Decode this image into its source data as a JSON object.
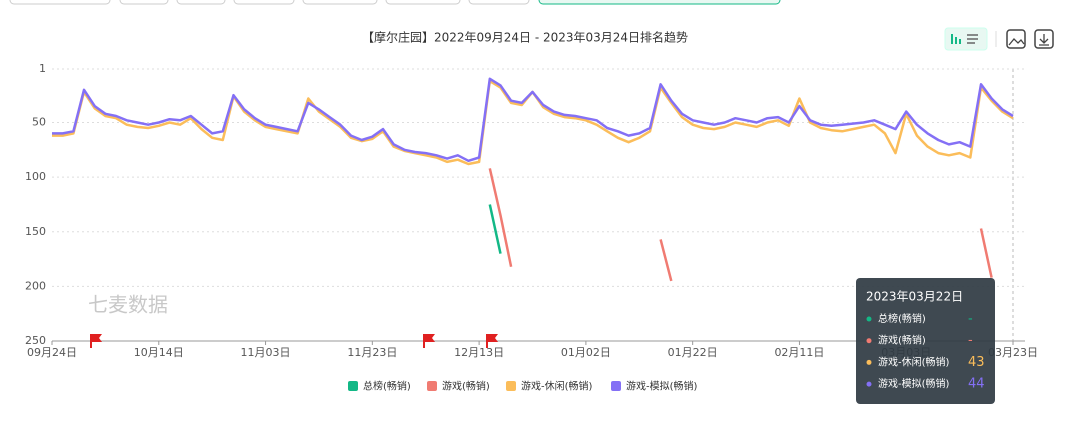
{
  "chart_data": {
    "type": "line",
    "title": "【摩尔庄园】2022年09月24日 - 2023年03月24日排名趋势",
    "watermark": "七麦数据",
    "categories": [
      "09月24日",
      null,
      null,
      null,
      null,
      null,
      null,
      null,
      null,
      null,
      "10月14日",
      null,
      null,
      null,
      null,
      null,
      null,
      null,
      null,
      null,
      "11月03日",
      null,
      null,
      null,
      null,
      null,
      null,
      null,
      null,
      null,
      "11月23日",
      null,
      null,
      null,
      null,
      null,
      null,
      null,
      null,
      null,
      "12月13日",
      null,
      null,
      null,
      null,
      null,
      null,
      null,
      null,
      null,
      "01月02日",
      null,
      null,
      null,
      null,
      null,
      null,
      null,
      null,
      null,
      "01月22日",
      null,
      null,
      null,
      null,
      null,
      null,
      null,
      null,
      null,
      "02月11日",
      null,
      null,
      null,
      null,
      null,
      null,
      null,
      null,
      null,
      "03月03日",
      null,
      null,
      null,
      null,
      null,
      null,
      null,
      null,
      null,
      "03月23日"
    ],
    "ylim": [
      1,
      250
    ],
    "y_inverted": true,
    "yticks": [
      1,
      50,
      100,
      150,
      200,
      250
    ],
    "grid": true,
    "series": [
      {
        "name": "总榜(畅销)",
        "color": "#13b886",
        "values": [
          null,
          null,
          null,
          null,
          null,
          null,
          null,
          null,
          null,
          null,
          null,
          null,
          null,
          null,
          null,
          null,
          null,
          null,
          null,
          null,
          null,
          null,
          null,
          null,
          null,
          null,
          null,
          null,
          null,
          null,
          null,
          null,
          null,
          null,
          null,
          null,
          null,
          null,
          null,
          null,
          null,
          125,
          170,
          null,
          null,
          null,
          null,
          null,
          null,
          null,
          null,
          null,
          null,
          null,
          null,
          null,
          null,
          null,
          null,
          null,
          null,
          null,
          null,
          null,
          null,
          null,
          null,
          null,
          null,
          null,
          null,
          null,
          null,
          null,
          null,
          null,
          null,
          null,
          null,
          null,
          null,
          null,
          null,
          null,
          null,
          null,
          null,
          null,
          null,
          null,
          null
        ]
      },
      {
        "name": "游戏(畅销)",
        "color": "#f07b72",
        "values": [
          null,
          null,
          null,
          null,
          null,
          null,
          null,
          null,
          null,
          null,
          null,
          null,
          null,
          null,
          null,
          null,
          null,
          null,
          null,
          null,
          null,
          null,
          null,
          null,
          null,
          null,
          null,
          null,
          null,
          null,
          null,
          null,
          null,
          null,
          null,
          null,
          null,
          null,
          null,
          null,
          null,
          92,
          135,
          182,
          null,
          null,
          null,
          null,
          null,
          null,
          null,
          null,
          null,
          null,
          null,
          null,
          null,
          157,
          195,
          null,
          null,
          null,
          null,
          null,
          null,
          null,
          null,
          null,
          null,
          null,
          null,
          null,
          null,
          null,
          null,
          null,
          null,
          null,
          null,
          null,
          null,
          null,
          null,
          null,
          null,
          null,
          null,
          147,
          192,
          null,
          null
        ]
      },
      {
        "name": "游戏-休闲(畅销)",
        "color": "#fbbd5a",
        "values": [
          62,
          62,
          60,
          22,
          37,
          44,
          46,
          52,
          54,
          55,
          53,
          50,
          52,
          46,
          56,
          64,
          66,
          26,
          40,
          48,
          54,
          56,
          58,
          60,
          28,
          40,
          47,
          54,
          64,
          67,
          65,
          58,
          72,
          76,
          78,
          80,
          82,
          86,
          84,
          88,
          86,
          12,
          18,
          32,
          34,
          22,
          36,
          42,
          45,
          46,
          48,
          52,
          58,
          64,
          68,
          64,
          58,
          18,
          32,
          45,
          52,
          55,
          56,
          54,
          50,
          52,
          54,
          50,
          48,
          53,
          28,
          50,
          55,
          57,
          58,
          56,
          54,
          52,
          60,
          78,
          42,
          62,
          72,
          78,
          80,
          78,
          82,
          18,
          30,
          40,
          46
        ]
      },
      {
        "name": "游戏-模拟(畅销)",
        "color": "#8470f5",
        "values": [
          60,
          60,
          58,
          20,
          35,
          42,
          44,
          48,
          50,
          52,
          50,
          47,
          48,
          44,
          52,
          60,
          58,
          25,
          38,
          46,
          52,
          54,
          56,
          58,
          32,
          38,
          45,
          52,
          62,
          66,
          63,
          56,
          70,
          75,
          77,
          78,
          80,
          83,
          80,
          85,
          82,
          10,
          16,
          30,
          32,
          22,
          34,
          40,
          43,
          44,
          46,
          48,
          55,
          58,
          62,
          60,
          55,
          15,
          30,
          42,
          48,
          50,
          52,
          50,
          46,
          48,
          50,
          46,
          45,
          50,
          35,
          48,
          52,
          53,
          52,
          51,
          50,
          48,
          52,
          56,
          40,
          52,
          60,
          66,
          70,
          68,
          72,
          15,
          28,
          38,
          44
        ]
      }
    ],
    "tooltip": {
      "title": "2023年03月22日",
      "values": [
        "-",
        "-",
        43,
        44
      ]
    }
  }
}
